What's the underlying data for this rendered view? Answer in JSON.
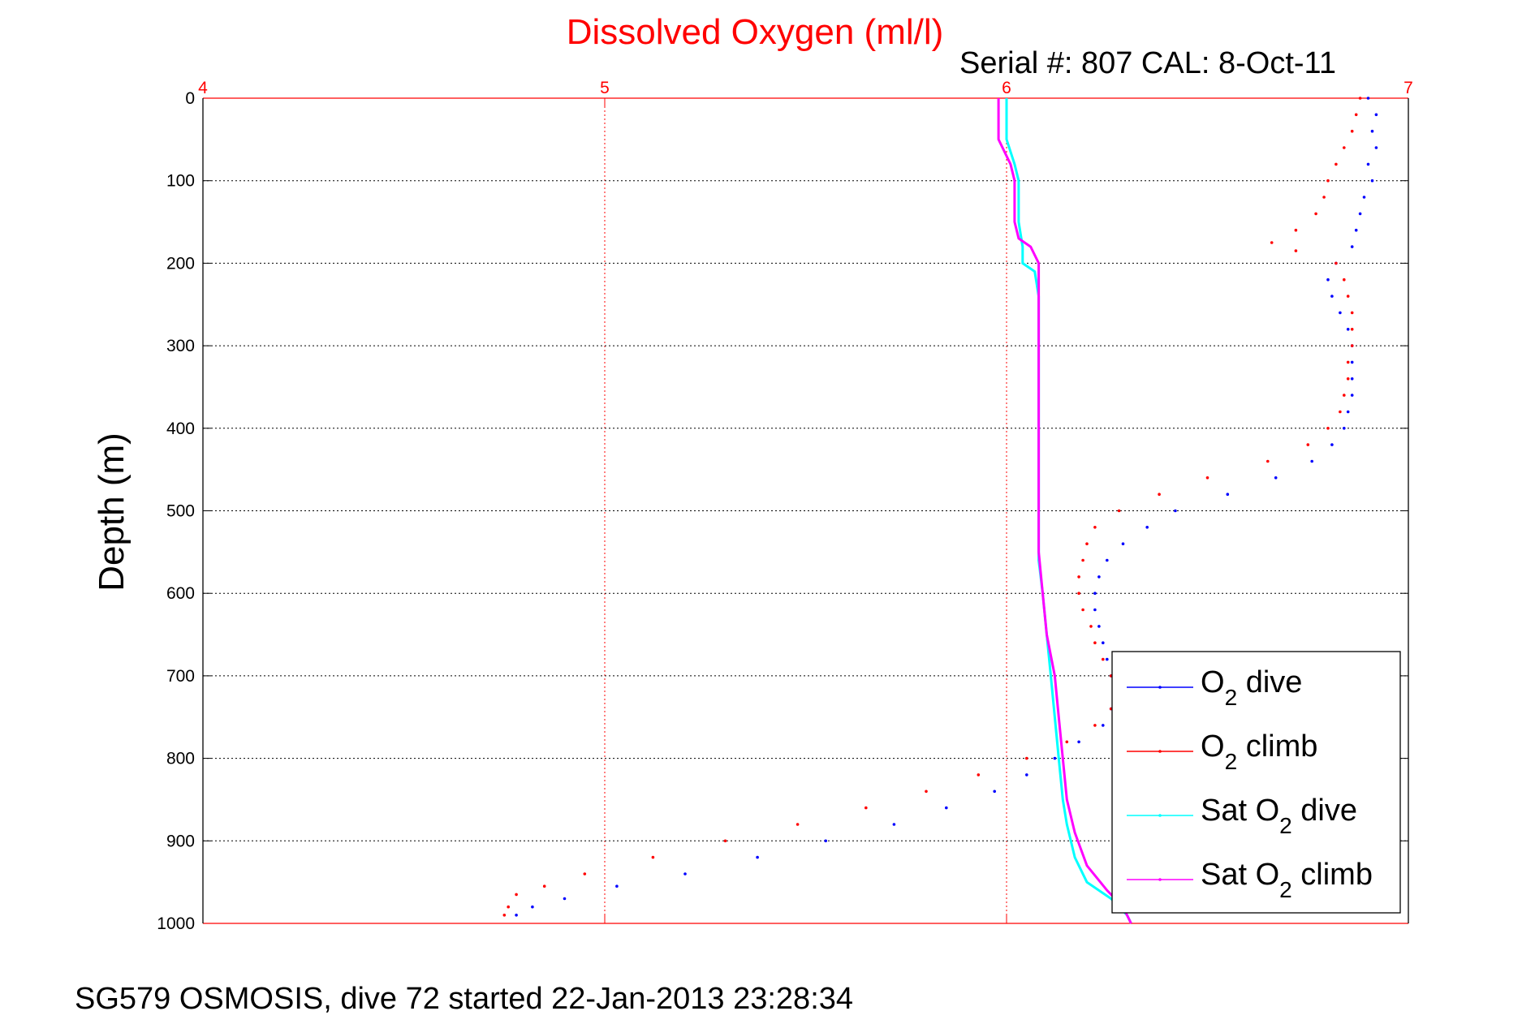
{
  "chart_data": {
    "type": "scatter",
    "title": "Dissolved Oxygen (ml/l)",
    "subtitle": "Serial #: 807  CAL: 8-Oct-11",
    "xlabel": "",
    "ylabel": "Depth (m)",
    "xlim": [
      4,
      7
    ],
    "ylim": [
      0,
      1000
    ],
    "y_reversed": true,
    "x_axis_position": "top",
    "x_ticks": [
      "4",
      "5",
      "6",
      "7"
    ],
    "y_ticks": [
      "0",
      "100",
      "200",
      "300",
      "400",
      "500",
      "600",
      "700",
      "800",
      "900",
      "1000"
    ],
    "grid": true,
    "legend_position": "bottom-right",
    "colors": {
      "title": "#ff0000",
      "xaxis": "#ff0000"
    },
    "series": [
      {
        "name": "O₂ dive",
        "legend_main": "O",
        "legend_sub": "2",
        "legend_rest": " dive",
        "color": "#0000ff",
        "mode": "dots",
        "points": [
          [
            6.9,
            0
          ],
          [
            6.92,
            20
          ],
          [
            6.91,
            40
          ],
          [
            6.92,
            60
          ],
          [
            6.9,
            80
          ],
          [
            6.91,
            100
          ],
          [
            6.89,
            120
          ],
          [
            6.88,
            140
          ],
          [
            6.87,
            160
          ],
          [
            6.86,
            180
          ],
          [
            6.82,
            200
          ],
          [
            6.8,
            220
          ],
          [
            6.81,
            240
          ],
          [
            6.83,
            260
          ],
          [
            6.85,
            280
          ],
          [
            6.86,
            300
          ],
          [
            6.86,
            320
          ],
          [
            6.86,
            340
          ],
          [
            6.86,
            360
          ],
          [
            6.85,
            380
          ],
          [
            6.84,
            400
          ],
          [
            6.81,
            420
          ],
          [
            6.76,
            440
          ],
          [
            6.67,
            460
          ],
          [
            6.55,
            480
          ],
          [
            6.42,
            500
          ],
          [
            6.35,
            520
          ],
          [
            6.29,
            540
          ],
          [
            6.25,
            560
          ],
          [
            6.23,
            580
          ],
          [
            6.22,
            600
          ],
          [
            6.22,
            620
          ],
          [
            6.23,
            640
          ],
          [
            6.24,
            660
          ],
          [
            6.25,
            680
          ],
          [
            6.26,
            700
          ],
          [
            6.27,
            720
          ],
          [
            6.26,
            740
          ],
          [
            6.24,
            760
          ],
          [
            6.18,
            780
          ],
          [
            6.12,
            800
          ],
          [
            6.05,
            820
          ],
          [
            5.97,
            840
          ],
          [
            5.85,
            860
          ],
          [
            5.72,
            880
          ],
          [
            5.55,
            900
          ],
          [
            5.38,
            920
          ],
          [
            5.2,
            940
          ],
          [
            5.03,
            955
          ],
          [
            4.9,
            970
          ],
          [
            4.82,
            980
          ],
          [
            4.78,
            990
          ]
        ]
      },
      {
        "name": "O₂ climb",
        "legend_main": "O",
        "legend_sub": "2",
        "legend_rest": " climb",
        "color": "#ff0000",
        "mode": "dots",
        "points": [
          [
            6.88,
            0
          ],
          [
            6.87,
            20
          ],
          [
            6.86,
            40
          ],
          [
            6.84,
            60
          ],
          [
            6.82,
            80
          ],
          [
            6.8,
            100
          ],
          [
            6.79,
            120
          ],
          [
            6.77,
            140
          ],
          [
            6.72,
            160
          ],
          [
            6.66,
            175
          ],
          [
            6.72,
            185
          ],
          [
            6.82,
            200
          ],
          [
            6.84,
            220
          ],
          [
            6.85,
            240
          ],
          [
            6.86,
            260
          ],
          [
            6.86,
            280
          ],
          [
            6.86,
            300
          ],
          [
            6.85,
            320
          ],
          [
            6.85,
            340
          ],
          [
            6.84,
            360
          ],
          [
            6.83,
            380
          ],
          [
            6.8,
            400
          ],
          [
            6.75,
            420
          ],
          [
            6.65,
            440
          ],
          [
            6.5,
            460
          ],
          [
            6.38,
            480
          ],
          [
            6.28,
            500
          ],
          [
            6.22,
            520
          ],
          [
            6.2,
            540
          ],
          [
            6.19,
            560
          ],
          [
            6.18,
            580
          ],
          [
            6.18,
            600
          ],
          [
            6.19,
            620
          ],
          [
            6.21,
            640
          ],
          [
            6.22,
            660
          ],
          [
            6.24,
            680
          ],
          [
            6.26,
            700
          ],
          [
            6.27,
            720
          ],
          [
            6.26,
            740
          ],
          [
            6.22,
            760
          ],
          [
            6.15,
            780
          ],
          [
            6.05,
            800
          ],
          [
            5.93,
            820
          ],
          [
            5.8,
            840
          ],
          [
            5.65,
            860
          ],
          [
            5.48,
            880
          ],
          [
            5.3,
            900
          ],
          [
            5.12,
            920
          ],
          [
            4.95,
            940
          ],
          [
            4.85,
            955
          ],
          [
            4.78,
            965
          ],
          [
            4.76,
            980
          ],
          [
            4.75,
            990
          ]
        ]
      },
      {
        "name": "Sat O₂ dive",
        "legend_main": "Sat O",
        "legend_sub": "2",
        "legend_rest": " dive",
        "color": "#00ffff",
        "mode": "line",
        "points": [
          [
            6.0,
            0
          ],
          [
            6.0,
            50
          ],
          [
            6.02,
            80
          ],
          [
            6.03,
            100
          ],
          [
            6.03,
            150
          ],
          [
            6.04,
            180
          ],
          [
            6.04,
            200
          ],
          [
            6.07,
            210
          ],
          [
            6.08,
            240
          ],
          [
            6.08,
            300
          ],
          [
            6.08,
            400
          ],
          [
            6.08,
            500
          ],
          [
            6.08,
            560
          ],
          [
            6.09,
            600
          ],
          [
            6.1,
            650
          ],
          [
            6.11,
            700
          ],
          [
            6.12,
            750
          ],
          [
            6.13,
            800
          ],
          [
            6.14,
            850
          ],
          [
            6.15,
            880
          ],
          [
            6.17,
            920
          ],
          [
            6.2,
            950
          ],
          [
            6.26,
            970
          ],
          [
            6.3,
            990
          ],
          [
            6.31,
            1000
          ]
        ]
      },
      {
        "name": "Sat O₂ climb",
        "legend_main": "Sat O",
        "legend_sub": "2",
        "legend_rest": " climb",
        "color": "#ff00ff",
        "mode": "line",
        "points": [
          [
            5.98,
            0
          ],
          [
            5.98,
            50
          ],
          [
            6.01,
            80
          ],
          [
            6.02,
            100
          ],
          [
            6.02,
            150
          ],
          [
            6.03,
            170
          ],
          [
            6.06,
            180
          ],
          [
            6.08,
            200
          ],
          [
            6.08,
            240
          ],
          [
            6.08,
            300
          ],
          [
            6.08,
            400
          ],
          [
            6.08,
            500
          ],
          [
            6.08,
            550
          ],
          [
            6.09,
            600
          ],
          [
            6.1,
            650
          ],
          [
            6.12,
            700
          ],
          [
            6.13,
            750
          ],
          [
            6.14,
            800
          ],
          [
            6.15,
            850
          ],
          [
            6.17,
            890
          ],
          [
            6.2,
            930
          ],
          [
            6.25,
            960
          ],
          [
            6.29,
            980
          ],
          [
            6.31,
            1000
          ]
        ]
      }
    ]
  },
  "footer": "SG579 OSMOSIS, dive 72 started 22-Jan-2013 23:28:34"
}
